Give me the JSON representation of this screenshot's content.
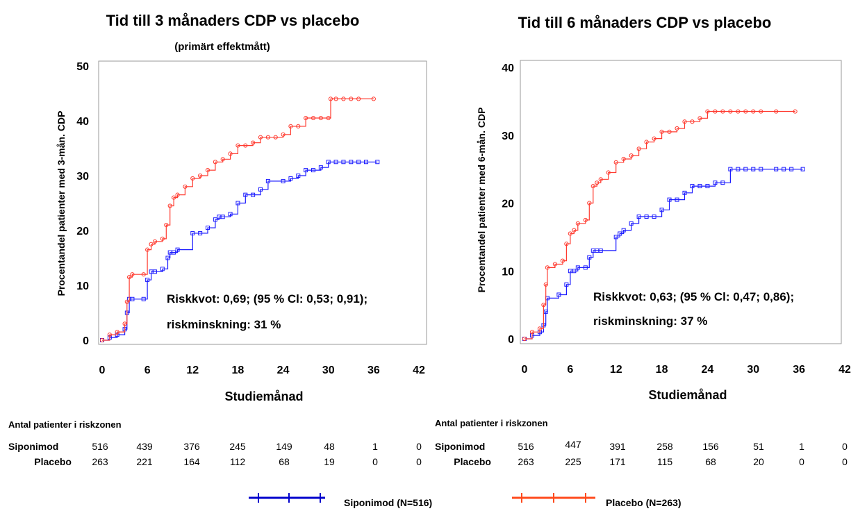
{
  "colors": {
    "siponimod": "#1a1aff",
    "placebo": "#ff3b30",
    "frame": "#9a9a9a",
    "legend_siponimod": "#0000cc",
    "legend_placebo": "#ff4a1c"
  },
  "x_axis_label": "Studiemånad",
  "risk_table_title": "Antal patienter i riskzonen",
  "legend": [
    {
      "label": "Siponimod (N=516)",
      "color_key": "legend_siponimod"
    },
    {
      "label": "Placebo (N=263)",
      "color_key": "legend_placebo"
    }
  ],
  "chart_data": [
    {
      "type": "line",
      "title": "Tid till 3 månaders CDP vs placebo",
      "subtitle": "(primärt effektmått)",
      "xlabel": "Studiemånad",
      "ylabel": "Procentandel patienter med 3-mån. CDP",
      "xlim": [
        0,
        42
      ],
      "ylim": [
        0,
        50
      ],
      "xticks": [
        0,
        6,
        12,
        18,
        24,
        30,
        36,
        42
      ],
      "yticks": [
        0,
        10,
        20,
        30,
        40,
        50
      ],
      "annotation": [
        "Riskkvot: 0,69; (95 % Cl: 0,53; 0,91);",
        "riskminskning: 31 %"
      ],
      "series": [
        {
          "name": "Siponimod",
          "color_key": "siponimod",
          "marker": "square",
          "x": [
            0,
            1,
            2,
            3,
            3.3,
            3.6,
            4,
            5.5,
            6,
            6.5,
            7,
            8,
            8.7,
            9,
            9.5,
            10,
            12,
            13,
            14,
            15,
            15.5,
            16,
            17,
            18,
            19,
            20,
            21,
            22,
            24,
            25,
            26,
            27,
            28,
            29,
            30,
            31,
            32,
            33,
            34,
            35,
            36.5
          ],
          "y": [
            0,
            0.5,
            1,
            2,
            5,
            7.5,
            7.5,
            7.5,
            11,
            12.5,
            12.5,
            13,
            15,
            16,
            16,
            16.5,
            19.5,
            19.5,
            20.5,
            22,
            22.5,
            22.5,
            23,
            25,
            26.5,
            26.5,
            27.5,
            29,
            29,
            29.5,
            30,
            31,
            31,
            31.5,
            32.5,
            32.5,
            32.5,
            32.5,
            32.5,
            32.5,
            32.5
          ]
        },
        {
          "name": "Placebo",
          "color_key": "placebo",
          "marker": "circle",
          "x": [
            0,
            1,
            2,
            3,
            3.3,
            3.6,
            4,
            5.5,
            6,
            6.5,
            7,
            8,
            8.5,
            9,
            9.5,
            10,
            11,
            12,
            13,
            14,
            15,
            16,
            17,
            18,
            19,
            20,
            21,
            22,
            23,
            24,
            25,
            26,
            27,
            28,
            29,
            30,
            30.3,
            31,
            32,
            33,
            34,
            36
          ],
          "y": [
            0,
            1,
            1.5,
            3,
            7,
            11.5,
            12,
            12,
            16.5,
            17.5,
            18,
            18.5,
            21,
            24.5,
            26,
            26.5,
            28,
            29.5,
            30,
            31,
            32.5,
            33,
            34,
            35.5,
            35.5,
            36,
            37,
            37,
            37,
            37.5,
            39,
            39,
            40.5,
            40.5,
            40.5,
            40.5,
            44,
            44,
            44,
            44,
            44,
            44
          ]
        }
      ],
      "risk_table": {
        "rows": [
          {
            "label": "Siponimod",
            "values": [
              "516",
              "439",
              "376",
              "245",
              "149",
              "48",
              "1",
              "0"
            ]
          },
          {
            "label": "Placebo",
            "values": [
              "263",
              "221",
              "164",
              "112",
              "68",
              "19",
              "0",
              "0"
            ]
          }
        ]
      }
    },
    {
      "type": "line",
      "title": "Tid till 6 månaders CDP vs placebo",
      "subtitle": "",
      "xlabel": "Studiemånad",
      "ylabel": "Procentandel patienter med 6-mån. CDP",
      "xlim": [
        0,
        42
      ],
      "ylim": [
        0,
        40
      ],
      "xticks": [
        0,
        6,
        12,
        18,
        24,
        30,
        36,
        42
      ],
      "yticks": [
        0,
        10,
        20,
        30,
        40
      ],
      "annotation": [
        "Riskkvot: 0,63; (95 % Cl: 0,47; 0,86);",
        "riskminskning: 37 %"
      ],
      "series": [
        {
          "name": "Siponimod",
          "color_key": "siponimod",
          "marker": "square",
          "x": [
            0,
            1,
            2,
            2.5,
            2.8,
            3,
            4.5,
            5.5,
            6,
            6.5,
            7,
            8,
            8.5,
            9,
            9.5,
            10,
            12,
            12.5,
            13,
            14,
            15,
            16,
            17,
            18,
            19,
            20,
            21,
            22,
            23,
            24,
            25,
            26,
            27,
            28,
            29,
            30,
            31,
            33,
            34,
            35,
            36.5
          ],
          "y": [
            0,
            0.5,
            1,
            2,
            4,
            6,
            6.5,
            8,
            10,
            10,
            10.5,
            10.5,
            12,
            13,
            13,
            13,
            15,
            15.5,
            16,
            17,
            18,
            18,
            18,
            19,
            20.5,
            20.5,
            21.5,
            22.5,
            22.5,
            22.5,
            23,
            23,
            25,
            25,
            25,
            25,
            25,
            25,
            25,
            25,
            25
          ]
        },
        {
          "name": "Placebo",
          "color_key": "placebo",
          "marker": "circle",
          "x": [
            0,
            1,
            2,
            2.5,
            2.8,
            3,
            4,
            5,
            5.5,
            6,
            6.5,
            7,
            8,
            8.5,
            9,
            9.5,
            10,
            11,
            12,
            13,
            14,
            15,
            16,
            17,
            18,
            19,
            20,
            21,
            22,
            23,
            24,
            25,
            26,
            27,
            28,
            29,
            30,
            31,
            33,
            35.5
          ],
          "y": [
            0,
            1,
            1.5,
            5,
            8,
            10.5,
            11,
            11.5,
            14,
            15.5,
            16,
            17,
            17.5,
            20,
            22.5,
            23,
            23.5,
            24.5,
            26,
            26.5,
            27,
            28,
            29,
            29.5,
            30.5,
            30.5,
            31,
            32,
            32,
            32.5,
            33.5,
            33.5,
            33.5,
            33.5,
            33.5,
            33.5,
            33.5,
            33.5,
            33.5,
            33.5
          ]
        }
      ],
      "risk_table": {
        "rows": [
          {
            "label": "Siponimod",
            "values": [
              "516",
              "447",
              "391",
              "258",
              "156",
              "51",
              "1",
              "0"
            ]
          },
          {
            "label": "Placebo",
            "values": [
              "263",
              "225",
              "171",
              "115",
              "68",
              "20",
              "0",
              "0"
            ]
          }
        ]
      }
    }
  ]
}
